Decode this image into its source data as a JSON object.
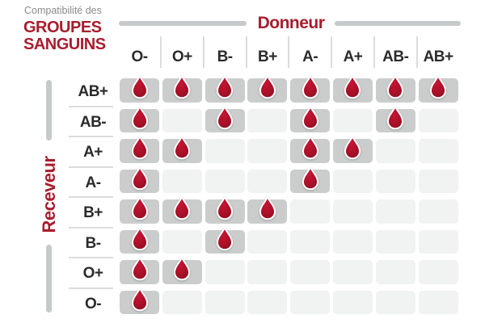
{
  "title": {
    "eyebrow": "Compatibilité des",
    "line1": "GROUPES",
    "line2": "SANGUINS"
  },
  "donor_axis_label": "Donneur",
  "receiver_axis_label": "Receveur",
  "chart_data": {
    "type": "heatmap",
    "title": "Compatibilité des groupes sanguins",
    "x_label": "Donneur",
    "y_label": "Receveur",
    "x": [
      "O-",
      "O+",
      "B-",
      "B+",
      "A-",
      "A+",
      "AB-",
      "AB+"
    ],
    "y": [
      "AB+",
      "AB-",
      "A+",
      "A-",
      "B+",
      "B-",
      "O+",
      "O-"
    ],
    "values": [
      [
        1,
        1,
        1,
        1,
        1,
        1,
        1,
        1
      ],
      [
        1,
        0,
        1,
        0,
        1,
        0,
        1,
        0
      ],
      [
        1,
        1,
        0,
        0,
        1,
        1,
        0,
        0
      ],
      [
        1,
        0,
        0,
        0,
        1,
        0,
        0,
        0
      ],
      [
        1,
        1,
        1,
        1,
        0,
        0,
        0,
        0
      ],
      [
        1,
        0,
        1,
        0,
        0,
        0,
        0,
        0
      ],
      [
        1,
        1,
        0,
        0,
        0,
        0,
        0,
        0
      ],
      [
        1,
        0,
        0,
        0,
        0,
        0,
        0,
        0
      ]
    ],
    "cell_meaning": {
      "1": "compatible — blood drop shown",
      "0": "not compatible — empty cell"
    },
    "legend_position": "none",
    "grid": "off"
  },
  "icons": {
    "compatible_marker": "blood-drop-icon"
  },
  "colors": {
    "crimson_text": "#A81D2E",
    "drop_red_center": "#C51534",
    "drop_red_edge": "#8E0D22",
    "header_text": "#2B2B2B",
    "eyebrow_gray": "#8B8B8B",
    "cell_compatible": "#CBCDCD",
    "cell_empty": "#F1F2F2",
    "separator": "#DCDCDC",
    "axis_bar": "#C7CACB"
  }
}
